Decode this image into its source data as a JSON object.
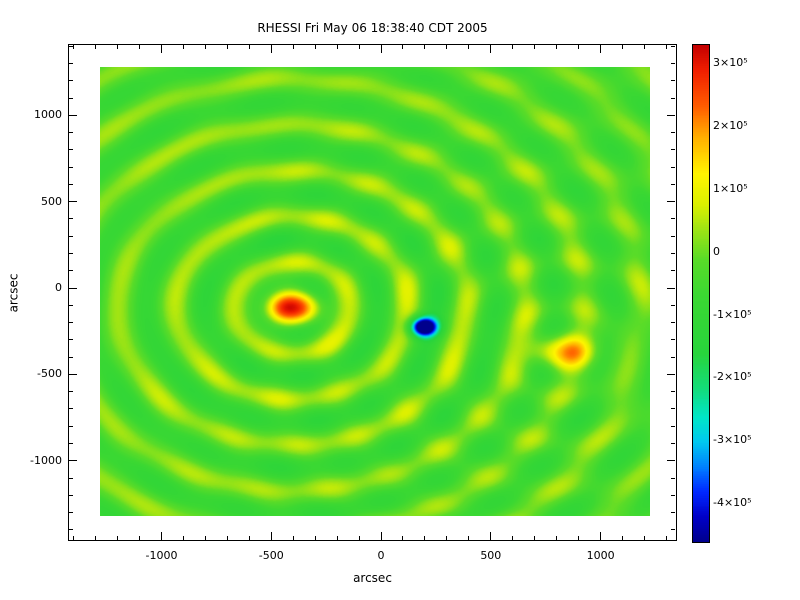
{
  "chart_data": {
    "type": "heatmap",
    "title": "RHESSI Fri May 06 18:38:40 CDT 2005",
    "xlabel": "arcsec",
    "ylabel": "arcsec",
    "x_range": [
      -1280,
      1225
    ],
    "y_range": [
      -1320,
      1280
    ],
    "x_ticks": [
      -1000,
      -500,
      0,
      500,
      1000
    ],
    "y_ticks": [
      1000,
      500,
      0,
      -500,
      -1000
    ],
    "minor_tick_step": 100,
    "value_range": [
      -460000,
      330000
    ],
    "background_value": -30000,
    "grid": false,
    "legend": false,
    "colorbar": {
      "position": "right",
      "ticks": [
        {
          "value": 300000,
          "label": "3×10⁵"
        },
        {
          "value": 200000,
          "label": "2×10⁵"
        },
        {
          "value": 100000,
          "label": "1×10⁵"
        },
        {
          "value": 0,
          "label": "0"
        },
        {
          "value": -100000,
          "label": "-1×10⁵"
        },
        {
          "value": -200000,
          "label": "-2×10⁵"
        },
        {
          "value": -300000,
          "label": "-3×10⁵"
        },
        {
          "value": -400000,
          "label": "-4×10⁵"
        }
      ]
    },
    "colormap": [
      [
        0.0,
        "#00008C"
      ],
      [
        0.05,
        "#0000C8"
      ],
      [
        0.1,
        "#0028FF"
      ],
      [
        0.15,
        "#0080FF"
      ],
      [
        0.2,
        "#00C8F0"
      ],
      [
        0.25,
        "#00E6C8"
      ],
      [
        0.31,
        "#14DC78"
      ],
      [
        0.38,
        "#28D43C"
      ],
      [
        0.5,
        "#3CD832"
      ],
      [
        0.57,
        "#5ADC28"
      ],
      [
        0.63,
        "#A0E414"
      ],
      [
        0.68,
        "#DCF000"
      ],
      [
        0.74,
        "#FFF500"
      ],
      [
        0.81,
        "#FFB400"
      ],
      [
        0.88,
        "#FF5A00"
      ],
      [
        0.95,
        "#F01E00"
      ],
      [
        1.0,
        "#C30000"
      ]
    ],
    "sources": [
      {
        "name": "primary-source",
        "x": -400,
        "y": -115,
        "amplitude": 340000,
        "sigma_x": 80,
        "sigma_y": 62,
        "ring_amplitude": 0.3,
        "ring_wavelength": 265,
        "ring_decay": 2500
      },
      {
        "name": "negative-source",
        "x": 195,
        "y": -225,
        "amplitude": -580000,
        "sigma_x": 42,
        "sigma_y": 38,
        "ring_amplitude": 0.0,
        "ring_wavelength": 260,
        "ring_decay": 300
      },
      {
        "name": "secondary-source",
        "x": 830,
        "y": -370,
        "amplitude": 215000,
        "sigma_x": 95,
        "sigma_y": 65,
        "ring_amplitude": 0.2,
        "ring_wavelength": 265,
        "ring_decay": 1600
      }
    ],
    "texture": {
      "amplitude": 13000,
      "kx": 0.0115,
      "ky": 0.0095
    }
  }
}
